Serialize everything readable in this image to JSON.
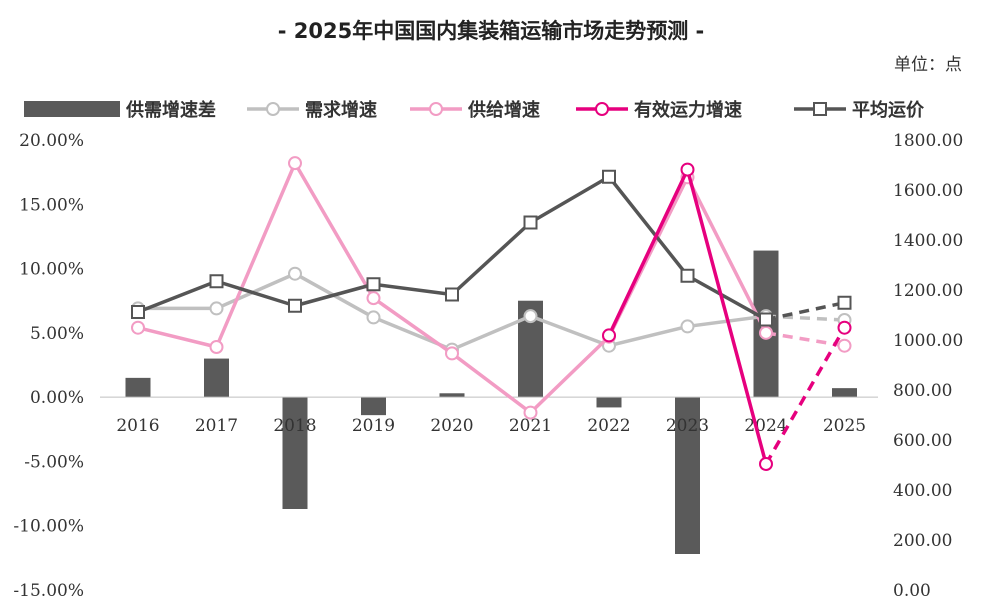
{
  "chart_data": {
    "type": "bar+line",
    "title": "- 2025年中国国内集装箱运输市场走势预测 -",
    "unit_label": "单位：点",
    "categories": [
      "2016",
      "2017",
      "2018",
      "2019",
      "2020",
      "2021",
      "2022",
      "2023",
      "2024",
      "2025"
    ],
    "forecast_categories": [
      "2025"
    ],
    "left_axis": {
      "ticks": [
        "20.00%",
        "15.00%",
        "10.00%",
        "5.00%",
        "0.00%",
        "-5.00%",
        "-10.00%",
        "-15.00%"
      ],
      "range": [
        -15,
        20
      ]
    },
    "right_axis": {
      "ticks": [
        "1800.00",
        "1600.00",
        "1400.00",
        "1200.00",
        "1000.00",
        "800.00",
        "600.00",
        "400.00",
        "200.00",
        "0.00"
      ],
      "range": [
        0,
        1800
      ]
    },
    "series": [
      {
        "name": "供需增速差",
        "kind": "bar",
        "axis": "left",
        "color": "#5a5a5a",
        "values": [
          1.5,
          3.0,
          -8.7,
          -1.4,
          0.3,
          7.5,
          -0.8,
          -12.2,
          11.4,
          0.7
        ]
      },
      {
        "name": "需求增速",
        "kind": "line",
        "axis": "left",
        "color": "#c0c0c0",
        "values": [
          6.9,
          6.9,
          9.6,
          6.2,
          3.7,
          6.3,
          4.0,
          5.5,
          6.3,
          6.0
        ]
      },
      {
        "name": "供给增速",
        "kind": "line",
        "axis": "left",
        "color": "#f29cc4",
        "values": [
          5.4,
          3.9,
          18.2,
          7.7,
          3.4,
          -1.2,
          4.7,
          17.1,
          5.0,
          4.0
        ]
      },
      {
        "name": "有效运力增速",
        "kind": "line",
        "axis": "left",
        "color": "#e6007e",
        "values": [
          null,
          null,
          null,
          null,
          null,
          null,
          4.8,
          17.7,
          -5.2,
          5.4
        ]
      },
      {
        "name": "平均运价",
        "kind": "line",
        "axis": "right",
        "color": "#555555",
        "values": [
          1112,
          1235,
          1137,
          1223,
          1182,
          1470,
          1653,
          1257,
          1082,
          1149
        ]
      }
    ]
  }
}
